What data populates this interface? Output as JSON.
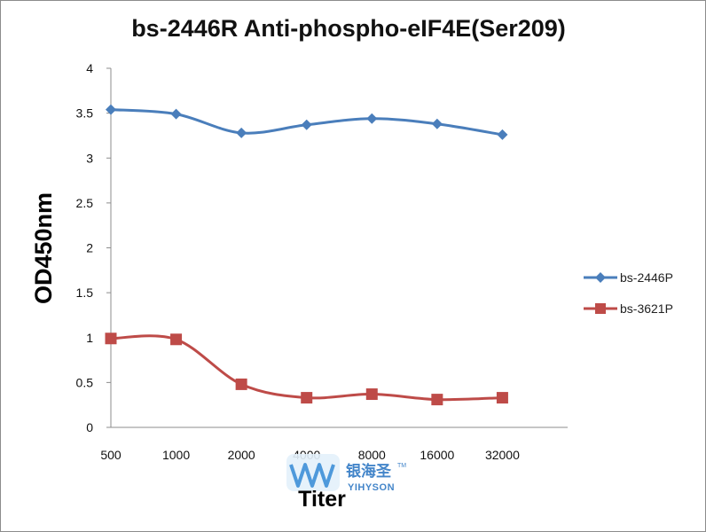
{
  "chart_data": {
    "type": "line",
    "title": "bs-2446R Anti-phospho-eIF4E(Ser209)",
    "xlabel": "Titer",
    "ylabel": "OD450nm",
    "categories": [
      "500",
      "1000",
      "2000",
      "4000",
      "8000",
      "16000",
      "32000"
    ],
    "y_ticks": [
      "0",
      "0.5",
      "1",
      "1.5",
      "2",
      "2.5",
      "3",
      "3.5",
      "4"
    ],
    "ylim": [
      0,
      4
    ],
    "grid": false,
    "legend_position": "right",
    "series": [
      {
        "name": "bs-2446P",
        "color": "#4a7ebb",
        "marker": "diamond",
        "values": [
          3.54,
          3.49,
          3.28,
          3.37,
          3.44,
          3.38,
          3.26
        ]
      },
      {
        "name": "bs-3621P",
        "color": "#be4b48",
        "marker": "square",
        "values": [
          0.99,
          0.98,
          0.48,
          0.33,
          0.37,
          0.31,
          0.33
        ]
      }
    ]
  },
  "watermark": {
    "brand_cn": "银海圣",
    "brand_en": "YIHYSON",
    "trademark": "TM"
  }
}
